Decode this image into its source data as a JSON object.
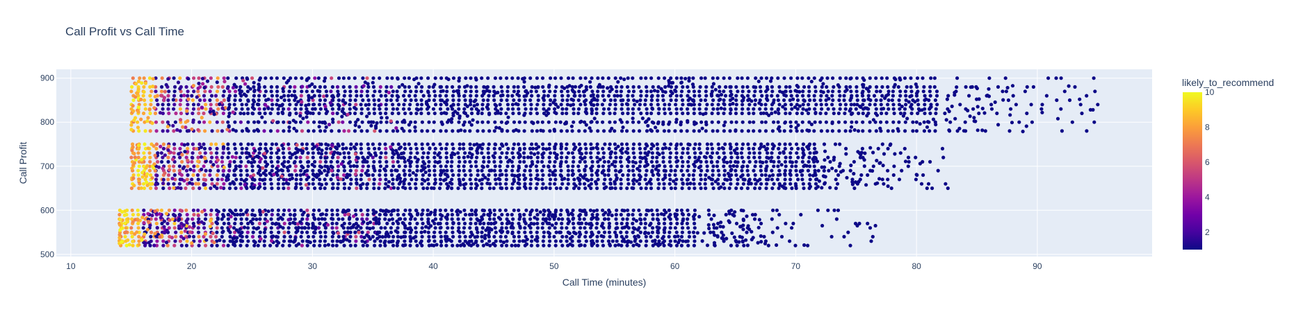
{
  "chart_data": {
    "type": "scatter",
    "title": "Call Profit vs Call Time",
    "xlabel": "Call Time (minutes)",
    "ylabel": "Call Profit",
    "xlim": [
      8.8,
      99.5
    ],
    "ylim": [
      495,
      920
    ],
    "xticks": [
      10,
      20,
      30,
      40,
      50,
      60,
      70,
      80,
      90
    ],
    "yticks": [
      500,
      600,
      700,
      800,
      900
    ],
    "grid": true,
    "colorbar": {
      "title": "likely_to_recommend",
      "min": 1,
      "max": 10,
      "ticks": [
        2,
        4,
        6,
        8,
        10
      ],
      "colorscale": [
        "#0d0887",
        "#46039f",
        "#7201a8",
        "#9c179e",
        "#bd3786",
        "#d8576b",
        "#ed7953",
        "#fb9f3a",
        "#fdca26",
        "#f0f921"
      ]
    },
    "bands": [
      {
        "levels": [
          520,
          530,
          540,
          550,
          560,
          570,
          580,
          590,
          600
        ],
        "x_min": 14,
        "x_dense_end": 62,
        "x_max": 76.5
      },
      {
        "levels": [
          650,
          660,
          670,
          680,
          690,
          700,
          710,
          720,
          730,
          740,
          750
        ],
        "x_min": 15,
        "x_dense_end": 72,
        "x_max": 82.6
      },
      {
        "levels": [
          780,
          800,
          820,
          830,
          840,
          850,
          860,
          870,
          880,
          900
        ],
        "x_min": 15,
        "x_dense_end": 82,
        "x_max": 94.9
      }
    ],
    "sample_points": [
      {
        "x": 95.0,
        "y": 840,
        "c": 1
      },
      {
        "x": 94.4,
        "y": 828,
        "c": 1
      },
      {
        "x": 94.6,
        "y": 828,
        "c": 1
      },
      {
        "x": 93.5,
        "y": 852,
        "c": 1
      },
      {
        "x": 92.6,
        "y": 882,
        "c": 1
      },
      {
        "x": 92.9,
        "y": 800,
        "c": 1
      },
      {
        "x": 90.9,
        "y": 900,
        "c": 1
      },
      {
        "x": 91.7,
        "y": 808,
        "c": 1
      },
      {
        "x": 90.4,
        "y": 822,
        "c": 1
      },
      {
        "x": 89.1,
        "y": 791,
        "c": 1
      },
      {
        "x": 88.8,
        "y": 779,
        "c": 1
      },
      {
        "x": 87.7,
        "y": 780,
        "c": 1
      },
      {
        "x": 82.6,
        "y": 650,
        "c": 1
      },
      {
        "x": 80.3,
        "y": 706,
        "c": 1
      },
      {
        "x": 80.0,
        "y": 681,
        "c": 1
      },
      {
        "x": 79.1,
        "y": 711,
        "c": 1
      },
      {
        "x": 78.2,
        "y": 728,
        "c": 1
      },
      {
        "x": 76.6,
        "y": 565,
        "c": 1
      },
      {
        "x": 75.1,
        "y": 565,
        "c": 1
      },
      {
        "x": 73.2,
        "y": 600,
        "c": 1
      },
      {
        "x": 72.2,
        "y": 565,
        "c": 1
      },
      {
        "x": 70.7,
        "y": 521,
        "c": 1
      },
      {
        "x": 68.4,
        "y": 521,
        "c": 1
      }
    ]
  }
}
